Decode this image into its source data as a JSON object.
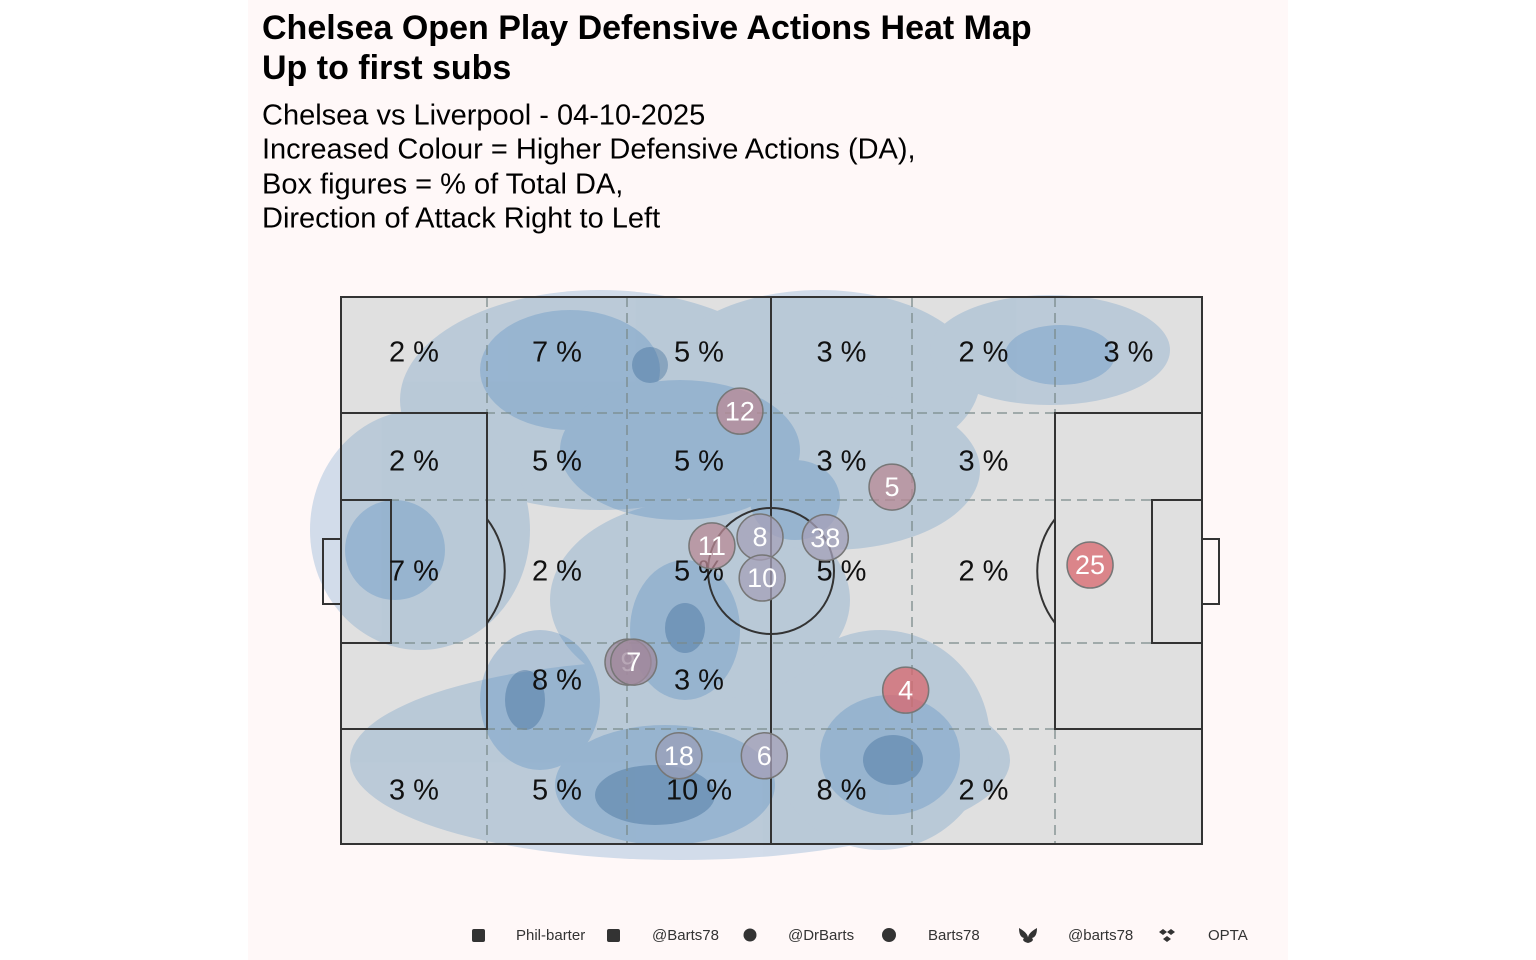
{
  "chart_data": {
    "type": "pitch-heatmap",
    "title": [
      "Chelsea Open Play Defensive Actions Heat Map",
      "Up to first subs"
    ],
    "subtitle": [
      "Chelsea vs Liverpool - 04-10-2025",
      "Increased Colour = Higher Defensive Actions (DA),",
      "Box figures = % of Total DA,",
      "Direction of Attack Right to Left"
    ],
    "xlim": [
      0,
      120
    ],
    "ylim": [
      0,
      80
    ],
    "zones": {
      "values": [
        [
          2,
          7,
          5,
          3,
          2,
          3
        ],
        [
          2,
          5,
          5,
          3,
          3,
          null
        ],
        [
          7,
          2,
          5,
          5,
          2,
          null
        ],
        [
          null,
          8,
          3,
          null,
          null,
          null
        ],
        [
          3,
          5,
          10,
          8,
          2,
          null
        ]
      ],
      "value_labels": [
        [
          "2 %",
          "7 %",
          "5 %",
          "3 %",
          "2 %",
          "3 %"
        ],
        [
          "2 %",
          "5 %",
          "5 %",
          "3 %",
          "3 %",
          null
        ],
        [
          "7 %",
          "2 %",
          "5 %",
          "5 %",
          "2 %",
          null
        ],
        [
          null,
          "8 %",
          "3 %",
          null,
          null,
          null
        ],
        [
          "3 %",
          "5 %",
          "10 %",
          "8 %",
          "2 %",
          null
        ]
      ]
    },
    "players": [
      {
        "label": "12",
        "x": 55.6,
        "y": 16.7,
        "color": "#b98a96"
      },
      {
        "label": "5",
        "x": 76.8,
        "y": 27.8,
        "color": "#b98a96"
      },
      {
        "label": "8",
        "x": 58.4,
        "y": 35.1,
        "color": "#a6a0b8"
      },
      {
        "label": "38",
        "x": 67.5,
        "y": 35.2,
        "color": "#a6a0b8"
      },
      {
        "label": "11",
        "x": 51.7,
        "y": 36.4,
        "color": "#b98a96"
      },
      {
        "label": "10",
        "x": 58.7,
        "y": 41.1,
        "color": "#a6a0b8"
      },
      {
        "label": "25",
        "x": 104.4,
        "y": 39.2,
        "color": "#d9676e"
      },
      {
        "label": "9",
        "x": 40.0,
        "y": 53.4,
        "color": "#a08a9e"
      },
      {
        "label": "7",
        "x": 40.8,
        "y": 53.4,
        "color": "#a08a9e"
      },
      {
        "label": "4",
        "x": 78.7,
        "y": 57.5,
        "color": "#d9676e"
      },
      {
        "label": "18",
        "x": 47.1,
        "y": 67.1,
        "color": "#9a9fb8"
      },
      {
        "label": "6",
        "x": 59.0,
        "y": 67.1,
        "color": "#a6a0b8"
      }
    ],
    "footer": [
      "Phil-barter",
      "@Barts78",
      "@DrBarts",
      "Barts78",
      "@barts78",
      "OPTA"
    ]
  }
}
